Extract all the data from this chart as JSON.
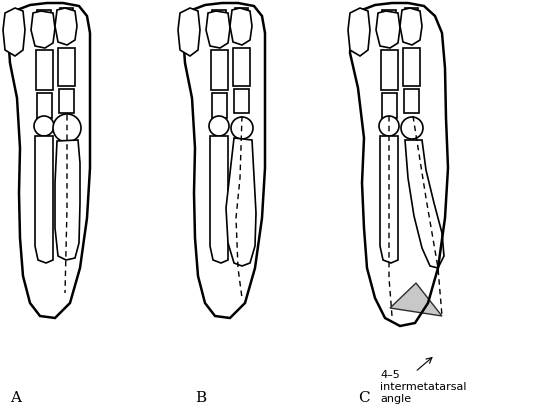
{
  "title": "",
  "background_color": "#ffffff",
  "label_A": "A",
  "label_B": "B",
  "label_C": "C",
  "annotation_line1": "4–5",
  "annotation_line2": "intermetatarsal",
  "annotation_line3": "angle",
  "label_fontsize": 11,
  "annotation_fontsize": 8,
  "figure_width": 5.58,
  "figure_height": 4.19,
  "dpi": 100
}
